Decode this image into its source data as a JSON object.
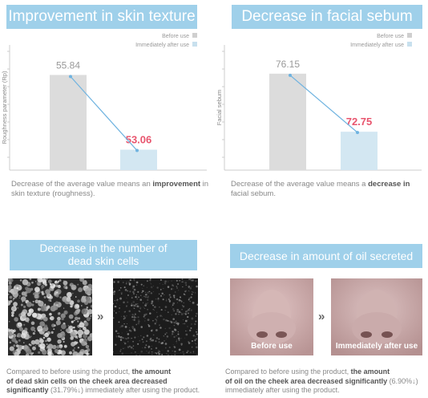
{
  "chart_data": [
    {
      "type": "bar",
      "title": "Improvement in skin texture",
      "ylabel": "Roughness parameter (Rp)",
      "categories": [
        "Before use",
        "Immediately after use"
      ],
      "values": [
        55.84,
        53.06
      ],
      "colors": [
        "#dcdcdc",
        "#d3e7f2"
      ],
      "label_colors": [
        "#999999",
        "#e8556e"
      ],
      "legend": [
        "Before use",
        "Immediately after use"
      ],
      "legend_position": "top-right",
      "caption": {
        "plain": "Decrease of the average value means an ",
        "bold": "improvement",
        "plain2": " in skin texture (roughness)."
      }
    },
    {
      "type": "bar",
      "title": "Decrease in facial sebum",
      "ylabel": "Facial sebum",
      "categories": [
        "Before use",
        "Immediately after use"
      ],
      "values": [
        76.15,
        72.75
      ],
      "colors": [
        "#dcdcdc",
        "#d3e7f2"
      ],
      "label_colors": [
        "#999999",
        "#e8556e"
      ],
      "legend": [
        "Before use",
        "Immediately after use"
      ],
      "legend_position": "top-right",
      "caption": {
        "plain": "Decrease of the average value means a ",
        "bold": "decrease in",
        "plain2": " facial sebum."
      }
    }
  ],
  "bottom_left": {
    "title_line1": "Decrease in the number of",
    "title_line2": "dead skin cells",
    "arrow": "»",
    "caption_plain": "Compared to before using the product, ",
    "caption_bold1": "the amount",
    "caption_bold2": "of dead skin cells on the cheek area decreased",
    "caption_bold3": "significantly",
    "caption_pct": " (31.79%↓)",
    "caption_end": " immediately after using the product."
  },
  "bottom_right": {
    "title": "Decrease in amount of oil secreted",
    "arrow": "»",
    "before_label": "Before use",
    "after_label": "Immediately after use",
    "caption_plain": "Compared to before using the product, ",
    "caption_bold1": "the amount",
    "caption_bold2": "of oil on the cheek area decreased significantly",
    "caption_pct": " (6.90%↓)",
    "caption_end": "immediately after using the product."
  }
}
